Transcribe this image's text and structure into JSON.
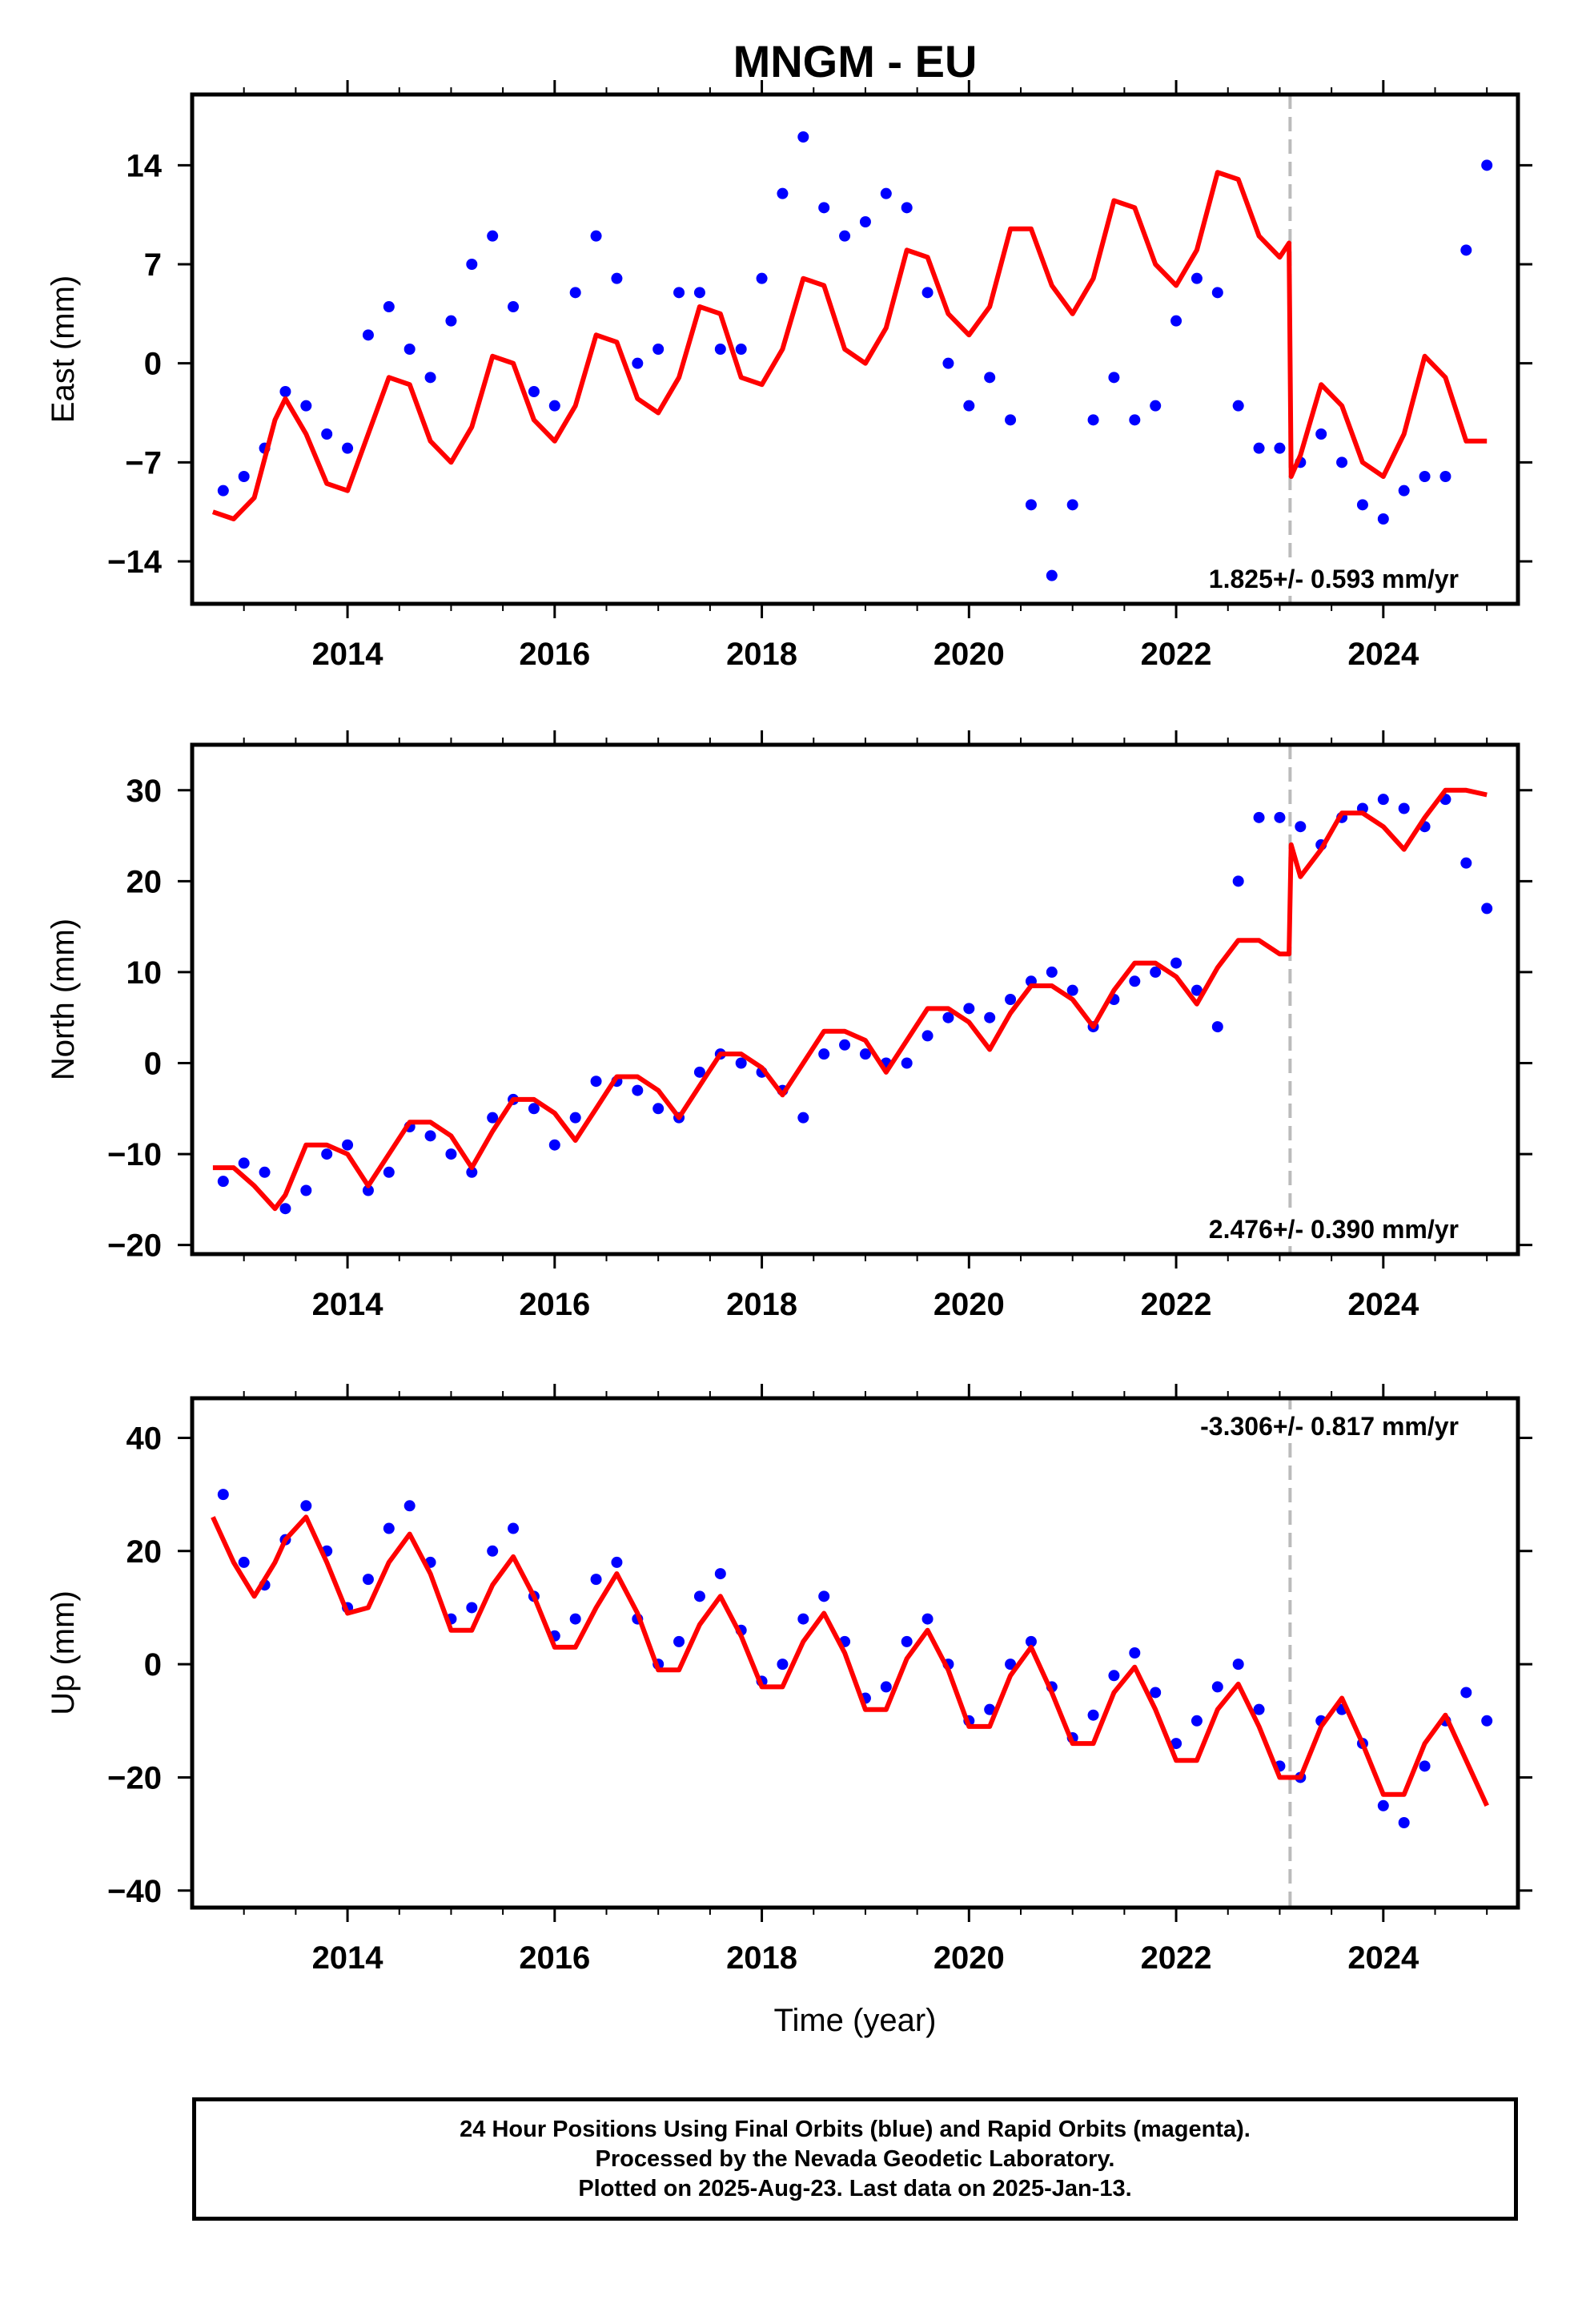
{
  "title": "MNGM - EU",
  "footer": {
    "line1": "24 Hour Positions Using Final Orbits (blue) and Rapid Orbits (magenta).",
    "line2": "Processed by the Nevada Geodetic Laboratory.",
    "line3": "Plotted on 2025-Aug-23. Last data on 2025-Jan-13."
  },
  "colors": {
    "data": "#0000ff",
    "model": "#ff0000",
    "step": "#bbbbbb",
    "axes": "#000000"
  },
  "chart_data": [
    {
      "type": "scatter",
      "component": "east",
      "ylabel": "East (mm)",
      "xlabel": "",
      "xlim": [
        2012.5,
        2025.3
      ],
      "ylim": [
        -17,
        19
      ],
      "yticks": [
        -14,
        -7,
        0,
        7,
        14
      ],
      "xticks": [
        2014,
        2016,
        2018,
        2020,
        2022,
        2024
      ],
      "annotation": "1.825+/- 0.593 mm/yr",
      "annotation_position": "bottom-right",
      "step_year": 2023.1,
      "series": [
        {
          "name": "Final Orbits (blue)",
          "x": [
            2012.8,
            2013.0,
            2013.2,
            2013.4,
            2013.6,
            2013.8,
            2014.0,
            2014.2,
            2014.4,
            2014.6,
            2014.8,
            2015.0,
            2015.2,
            2015.4,
            2015.6,
            2015.8,
            2016.0,
            2016.2,
            2016.4,
            2016.6,
            2016.8,
            2017.0,
            2017.2,
            2017.4,
            2017.6,
            2017.8,
            2018.0,
            2018.2,
            2018.4,
            2018.6,
            2018.8,
            2019.0,
            2019.2,
            2019.4,
            2019.6,
            2019.8,
            2020.0,
            2020.2,
            2020.4,
            2020.6,
            2020.8,
            2021.0,
            2021.2,
            2021.4,
            2021.6,
            2021.8,
            2022.0,
            2022.2,
            2022.4,
            2022.6,
            2022.8,
            2023.0,
            2023.2,
            2023.4,
            2023.6,
            2023.8,
            2024.0,
            2024.2,
            2024.4,
            2024.6,
            2024.8,
            2025.0
          ],
          "y": [
            -9,
            -8,
            -6,
            -2,
            -3,
            -5,
            -6,
            2,
            4,
            1,
            -1,
            3,
            7,
            9,
            4,
            -2,
            -3,
            5,
            9,
            6,
            0,
            1,
            5,
            5,
            1,
            1,
            6,
            12,
            16,
            11,
            9,
            10,
            12,
            11,
            5,
            0,
            -3,
            -1,
            -4,
            -10,
            -15,
            -10,
            -4,
            -1,
            -4,
            -3,
            3,
            6,
            5,
            -3,
            -6,
            -6,
            -7,
            -5,
            -7,
            -10,
            -11,
            -9,
            -8,
            -8,
            8,
            14
          ]
        },
        {
          "name": "model",
          "x": [
            2012.7,
            2012.9,
            2013.1,
            2013.3,
            2013.4,
            2013.6,
            2013.8,
            2014.0,
            2014.2,
            2014.4,
            2014.6,
            2014.8,
            2015.0,
            2015.2,
            2015.4,
            2015.6,
            2015.8,
            2016.0,
            2016.2,
            2016.4,
            2016.6,
            2016.8,
            2017.0,
            2017.2,
            2017.4,
            2017.6,
            2017.8,
            2018.0,
            2018.2,
            2018.4,
            2018.6,
            2018.8,
            2019.0,
            2019.2,
            2019.4,
            2019.6,
            2019.8,
            2020.0,
            2020.2,
            2020.4,
            2020.6,
            2020.8,
            2021.0,
            2021.2,
            2021.4,
            2021.6,
            2021.8,
            2022.0,
            2022.2,
            2022.4,
            2022.6,
            2022.8,
            2023.0,
            2023.09,
            2023.11,
            2023.2,
            2023.4,
            2023.6,
            2023.8,
            2024.0,
            2024.2,
            2024.4,
            2024.6,
            2024.8,
            2025.0
          ],
          "y": [
            -10.5,
            -11,
            -9.5,
            -4,
            -2.5,
            -5,
            -8.5,
            -9,
            -5,
            -1,
            -1.5,
            -5.5,
            -7,
            -4.5,
            0.5,
            0,
            -4,
            -5.5,
            -3,
            2,
            1.5,
            -2.5,
            -3.5,
            -1,
            4,
            3.5,
            -1,
            -1.5,
            1,
            6,
            5.5,
            1,
            0,
            2.5,
            8,
            7.5,
            3.5,
            2,
            4,
            9.5,
            9.5,
            5.5,
            3.5,
            6,
            11.5,
            11,
            7,
            5.5,
            8,
            13.5,
            13,
            9,
            7.5,
            8.5,
            -8,
            -6.5,
            -1.5,
            -3,
            -7,
            -8,
            -5,
            0.5,
            -1,
            -5.5,
            -5.5
          ]
        }
      ]
    },
    {
      "type": "scatter",
      "component": "north",
      "ylabel": "North (mm)",
      "xlabel": "",
      "xlim": [
        2012.5,
        2025.3
      ],
      "ylim": [
        -21,
        35
      ],
      "yticks": [
        -20,
        -10,
        0,
        10,
        20,
        30
      ],
      "xticks": [
        2014,
        2016,
        2018,
        2020,
        2022,
        2024
      ],
      "annotation": "2.476+/- 0.390 mm/yr",
      "annotation_position": "bottom-right",
      "step_year": 2023.1,
      "series": [
        {
          "name": "Final Orbits (blue)",
          "x": [
            2012.8,
            2013.0,
            2013.2,
            2013.4,
            2013.6,
            2013.8,
            2014.0,
            2014.2,
            2014.4,
            2014.6,
            2014.8,
            2015.0,
            2015.2,
            2015.4,
            2015.6,
            2015.8,
            2016.0,
            2016.2,
            2016.4,
            2016.6,
            2016.8,
            2017.0,
            2017.2,
            2017.4,
            2017.6,
            2017.8,
            2018.0,
            2018.2,
            2018.4,
            2018.6,
            2018.8,
            2019.0,
            2019.2,
            2019.4,
            2019.6,
            2019.8,
            2020.0,
            2020.2,
            2020.4,
            2020.6,
            2020.8,
            2021.0,
            2021.2,
            2021.4,
            2021.6,
            2021.8,
            2022.0,
            2022.2,
            2022.4,
            2022.6,
            2022.8,
            2023.0,
            2023.2,
            2023.4,
            2023.6,
            2023.8,
            2024.0,
            2024.2,
            2024.4,
            2024.6,
            2024.8,
            2025.0
          ],
          "y": [
            -13,
            -11,
            -12,
            -16,
            -14,
            -10,
            -9,
            -14,
            -12,
            -7,
            -8,
            -10,
            -12,
            -6,
            -4,
            -5,
            -9,
            -6,
            -2,
            -2,
            -3,
            -5,
            -6,
            -1,
            1,
            0,
            -1,
            -3,
            -6,
            1,
            2,
            1,
            0,
            0,
            3,
            5,
            6,
            5,
            7,
            9,
            10,
            8,
            4,
            7,
            9,
            10,
            11,
            8,
            4,
            20,
            27,
            27,
            26,
            24,
            27,
            28,
            29,
            28,
            26,
            29,
            22,
            17
          ]
        },
        {
          "name": "model",
          "x": [
            2012.7,
            2012.9,
            2013.1,
            2013.3,
            2013.4,
            2013.6,
            2013.8,
            2014.0,
            2014.2,
            2014.4,
            2014.6,
            2014.8,
            2015.0,
            2015.2,
            2015.4,
            2015.6,
            2015.8,
            2016.0,
            2016.2,
            2016.4,
            2016.6,
            2016.8,
            2017.0,
            2017.2,
            2017.4,
            2017.6,
            2017.8,
            2018.0,
            2018.2,
            2018.4,
            2018.6,
            2018.8,
            2019.0,
            2019.2,
            2019.4,
            2019.6,
            2019.8,
            2020.0,
            2020.2,
            2020.4,
            2020.6,
            2020.8,
            2021.0,
            2021.2,
            2021.4,
            2021.6,
            2021.8,
            2022.0,
            2022.2,
            2022.4,
            2022.6,
            2022.8,
            2023.0,
            2023.09,
            2023.11,
            2023.2,
            2023.4,
            2023.6,
            2023.8,
            2024.0,
            2024.2,
            2024.4,
            2024.6,
            2024.8,
            2025.0
          ],
          "y": [
            -11.5,
            -11.5,
            -13.5,
            -16,
            -14.5,
            -9,
            -9,
            -10,
            -13.5,
            -10,
            -6.5,
            -6.5,
            -8,
            -11.5,
            -7.5,
            -4,
            -4,
            -5.5,
            -8.5,
            -5,
            -1.5,
            -1.5,
            -3,
            -6,
            -2.5,
            1,
            1,
            -0.5,
            -3.5,
            0,
            3.5,
            3.5,
            2.5,
            -1,
            2.5,
            6,
            6,
            4.5,
            1.5,
            5.5,
            8.5,
            8.5,
            7,
            4,
            8,
            11,
            11,
            9.5,
            6.5,
            10.5,
            13.5,
            13.5,
            12,
            12,
            24,
            20.5,
            23.5,
            27.5,
            27.5,
            26,
            23.5,
            27,
            30,
            30,
            29.5
          ]
        }
      ]
    },
    {
      "type": "scatter",
      "component": "up",
      "ylabel": "Up (mm)",
      "xlabel": "Time (year)",
      "xlim": [
        2012.5,
        2025.3
      ],
      "ylim": [
        -43,
        47
      ],
      "yticks": [
        -40,
        -20,
        0,
        20,
        40
      ],
      "xticks": [
        2014,
        2016,
        2018,
        2020,
        2022,
        2024
      ],
      "annotation": "-3.306+/- 0.817 mm/yr",
      "annotation_position": "top-right",
      "step_year": 2023.1,
      "series": [
        {
          "name": "Final Orbits (blue)",
          "x": [
            2012.8,
            2013.0,
            2013.2,
            2013.4,
            2013.6,
            2013.8,
            2014.0,
            2014.2,
            2014.4,
            2014.6,
            2014.8,
            2015.0,
            2015.2,
            2015.4,
            2015.6,
            2015.8,
            2016.0,
            2016.2,
            2016.4,
            2016.6,
            2016.8,
            2017.0,
            2017.2,
            2017.4,
            2017.6,
            2017.8,
            2018.0,
            2018.2,
            2018.4,
            2018.6,
            2018.8,
            2019.0,
            2019.2,
            2019.4,
            2019.6,
            2019.8,
            2020.0,
            2020.2,
            2020.4,
            2020.6,
            2020.8,
            2021.0,
            2021.2,
            2021.4,
            2021.6,
            2021.8,
            2022.0,
            2022.2,
            2022.4,
            2022.6,
            2022.8,
            2023.0,
            2023.2,
            2023.4,
            2023.6,
            2023.8,
            2024.0,
            2024.2,
            2024.4,
            2024.6,
            2024.8,
            2025.0
          ],
          "y": [
            30,
            18,
            14,
            22,
            28,
            20,
            10,
            15,
            24,
            28,
            18,
            8,
            10,
            20,
            24,
            12,
            5,
            8,
            15,
            18,
            8,
            0,
            4,
            12,
            16,
            6,
            -3,
            0,
            8,
            12,
            4,
            -6,
            -4,
            4,
            8,
            0,
            -10,
            -8,
            0,
            4,
            -4,
            -13,
            -9,
            -2,
            2,
            -5,
            -14,
            -10,
            -4,
            0,
            -8,
            -18,
            -20,
            -10,
            -8,
            -14,
            -25,
            -28,
            -18,
            -10,
            -5,
            -10
          ]
        },
        {
          "name": "model",
          "x": [
            2012.7,
            2012.9,
            2013.1,
            2013.3,
            2013.4,
            2013.6,
            2013.8,
            2014.0,
            2014.2,
            2014.4,
            2014.6,
            2014.8,
            2015.0,
            2015.2,
            2015.4,
            2015.6,
            2015.8,
            2016.0,
            2016.2,
            2016.4,
            2016.6,
            2016.8,
            2017.0,
            2017.2,
            2017.4,
            2017.6,
            2017.8,
            2018.0,
            2018.2,
            2018.4,
            2018.6,
            2018.8,
            2019.0,
            2019.2,
            2019.4,
            2019.6,
            2019.8,
            2020.0,
            2020.2,
            2020.4,
            2020.6,
            2020.8,
            2021.0,
            2021.2,
            2021.4,
            2021.6,
            2021.8,
            2022.0,
            2022.2,
            2022.4,
            2022.6,
            2022.8,
            2023.0,
            2023.09,
            2023.11,
            2023.2,
            2023.4,
            2023.6,
            2023.8,
            2024.0,
            2024.2,
            2024.4,
            2024.6,
            2024.8,
            2025.0
          ],
          "y": [
            26,
            18,
            12,
            18,
            22,
            26,
            18,
            9,
            10,
            18,
            23,
            16,
            6,
            6,
            14,
            19,
            12,
            3,
            3,
            10,
            16,
            9,
            -1,
            -1,
            7,
            12,
            5,
            -4,
            -4,
            4,
            9,
            2,
            -8,
            -8,
            1,
            6,
            -1,
            -11,
            -11,
            -2,
            3,
            -5,
            -14,
            -14,
            -5,
            -0.5,
            -8,
            -17,
            -17,
            -8,
            -3.5,
            -11,
            -20,
            -20,
            -20,
            -20,
            -11,
            -6,
            -14,
            -23,
            -23,
            -14,
            -9,
            -17,
            -25
          ]
        }
      ]
    }
  ]
}
